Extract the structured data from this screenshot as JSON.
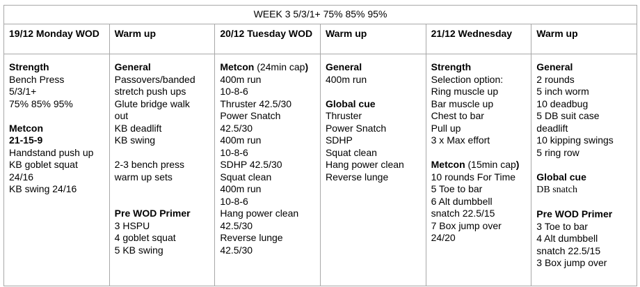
{
  "title": "WEEK 3  5/3/1+ 75% 85% 95%",
  "headers": [
    "19/12 Monday WOD",
    "Warm up",
    "20/12 Tuesday WOD",
    "Warm up",
    "21/12 Wednesday",
    "Warm up"
  ],
  "columns": [
    [
      [
        {
          "t": "Strength",
          "b": true
        }
      ],
      [
        {
          "t": "Bench Press"
        }
      ],
      [
        {
          "t": "5/3/1+"
        }
      ],
      [
        {
          "t": "75% 85% 95%"
        }
      ],
      [],
      [
        {
          "t": "Metcon",
          "b": true
        }
      ],
      [
        {
          "t": "21-15-9",
          "b": true
        }
      ],
      [
        {
          "t": "Handstand push up"
        }
      ],
      [
        {
          "t": "KB goblet squat"
        }
      ],
      [
        {
          "t": "24/16"
        }
      ],
      [
        {
          "t": "KB swing 24/16"
        }
      ]
    ],
    [
      [
        {
          "t": "General",
          "b": true
        }
      ],
      [
        {
          "t": "Passovers/banded"
        }
      ],
      [
        {
          "t": "stretch push ups"
        }
      ],
      [
        {
          "t": "Glute bridge walk"
        }
      ],
      [
        {
          "t": "out"
        }
      ],
      [
        {
          "t": "KB deadlift"
        }
      ],
      [
        {
          "t": "KB swing"
        }
      ],
      [],
      [
        {
          "t": "2-3 bench press"
        }
      ],
      [
        {
          "t": "warm up sets"
        }
      ],
      [],
      [],
      [
        {
          "t": "Pre WOD Primer",
          "b": true
        }
      ],
      [
        {
          "t": "3 HSPU"
        }
      ],
      [
        {
          "t": "4 goblet squat"
        }
      ],
      [
        {
          "t": "5 KB swing"
        }
      ]
    ],
    [
      [
        {
          "t": "Metcon",
          "b": true
        },
        {
          "t": " (24min cap"
        },
        {
          "t": ")",
          "b": true
        }
      ],
      [
        {
          "t": "400m run"
        }
      ],
      [
        {
          "t": "10-8-6"
        }
      ],
      [
        {
          "t": "Thruster 42.5/30"
        }
      ],
      [
        {
          "t": "Power Snatch"
        }
      ],
      [
        {
          "t": "42.5/30"
        }
      ],
      [
        {
          "t": "400m run"
        }
      ],
      [
        {
          "t": "10-8-6"
        }
      ],
      [
        {
          "t": "SDHP 42.5/30"
        }
      ],
      [
        {
          "t": "Squat clean"
        }
      ],
      [
        {
          "t": "400m run"
        }
      ],
      [
        {
          "t": "10-8-6"
        }
      ],
      [
        {
          "t": "Hang power clean"
        }
      ],
      [
        {
          "t": "42.5/30"
        }
      ],
      [
        {
          "t": "Reverse lunge"
        }
      ],
      [
        {
          "t": "42.5/30"
        }
      ]
    ],
    [
      [
        {
          "t": "General",
          "b": true
        }
      ],
      [
        {
          "t": "400m run"
        }
      ],
      [],
      [
        {
          "t": "Global cue",
          "b": true
        }
      ],
      [
        {
          "t": "Thruster"
        }
      ],
      [
        {
          "t": "Power Snatch"
        }
      ],
      [
        {
          "t": "SDHP"
        }
      ],
      [
        {
          "t": "Squat clean"
        }
      ],
      [
        {
          "t": "Hang power clean"
        }
      ],
      [
        {
          "t": "Reverse lunge"
        }
      ]
    ],
    [
      [
        {
          "t": "Strength",
          "b": true
        }
      ],
      [
        {
          "t": "Selection option:"
        }
      ],
      [
        {
          "t": "Ring muscle up"
        }
      ],
      [
        {
          "t": "Bar muscle up"
        }
      ],
      [
        {
          "t": "Chest to bar"
        }
      ],
      [
        {
          "t": "Pull up"
        }
      ],
      [
        {
          "t": "3 x Max effort"
        }
      ],
      [],
      [
        {
          "t": "Metcon",
          "b": true
        },
        {
          "t": " (15min cap"
        },
        {
          "t": ")",
          "b": true
        }
      ],
      [
        {
          "t": "10 rounds For Time"
        }
      ],
      [
        {
          "t": "5 Toe to bar"
        }
      ],
      [
        {
          "t": "6 Alt dumbbell"
        }
      ],
      [
        {
          "t": "snatch 22.5/15"
        }
      ],
      [
        {
          "t": "7 Box jump over"
        }
      ],
      [
        {
          "t": "24/20"
        }
      ]
    ],
    [
      [
        {
          "t": "General",
          "b": true
        }
      ],
      [
        {
          "t": "2 rounds"
        }
      ],
      [
        {
          "t": "5 inch worm"
        }
      ],
      [
        {
          "t": "10 deadbug"
        }
      ],
      [
        {
          "t": "5 DB suit case"
        }
      ],
      [
        {
          "t": "deadlift"
        }
      ],
      [
        {
          "t": "10 kipping swings"
        }
      ],
      [
        {
          "t": "5 ring row"
        }
      ],
      [],
      [
        {
          "t": "Global cue",
          "b": true
        }
      ],
      [
        {
          "t": "DB snatch",
          "serif": true
        }
      ],
      [],
      [
        {
          "t": "Pre WOD Primer",
          "b": true
        }
      ],
      [
        {
          "t": "3 Toe to bar"
        }
      ],
      [
        {
          "t": "4 Alt dumbbell"
        }
      ],
      [
        {
          "t": "snatch 22.5/15"
        }
      ],
      [
        {
          "t": "3 Box jump over"
        }
      ]
    ]
  ]
}
